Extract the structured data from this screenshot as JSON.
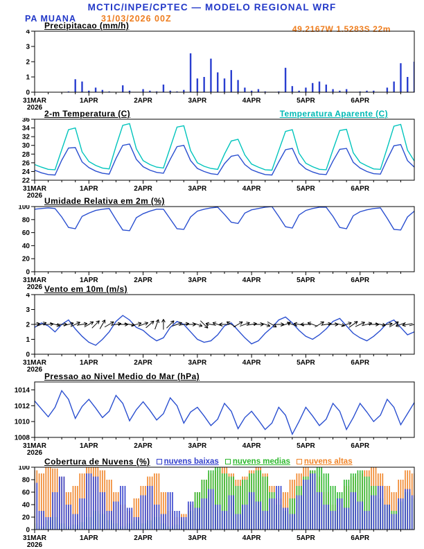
{
  "header": {
    "title": "MCTIC/INPE/CPTEC — MODELO REGIONAL WRF",
    "station": "PA MUANA",
    "run_datetime": "31/03/2026 00Z",
    "coordinates": "49.2167W 1.5283S 22m"
  },
  "colors": {
    "title_blue": "#2238c8",
    "accent_orange": "#ee7d1e",
    "line_blue": "#2a4fd0",
    "apparent_temp_cyan": "#00c4bc",
    "cloud_low_blue": "#3340cc",
    "cloud_mid_green": "#2db82d",
    "cloud_high_orange": "#f08428",
    "axis_black": "#000000"
  },
  "chart_data": {
    "type": "multi-panel-meteogram",
    "x": {
      "start_hours": 0,
      "end_hours": 168,
      "step_hours": 3,
      "ticks": [
        {
          "t": 0,
          "label": "31MAR",
          "sublabel": "2026"
        },
        {
          "t": 24,
          "label": "1APR"
        },
        {
          "t": 48,
          "label": "2APR"
        },
        {
          "t": 72,
          "label": "3APR"
        },
        {
          "t": 96,
          "label": "4APR"
        },
        {
          "t": 120,
          "label": "5APR"
        },
        {
          "t": 144,
          "label": "6APR"
        }
      ]
    },
    "panels": [
      {
        "id": "precip",
        "type": "bar",
        "title": "Precipitacao (mm/h)",
        "ylim": [
          0,
          4
        ],
        "yticks": [
          0,
          1,
          2,
          3,
          4
        ],
        "color": "#2a3fd0",
        "values": [
          0,
          0,
          0,
          0,
          0,
          0.05,
          0.85,
          0.7,
          0.1,
          0.3,
          0.15,
          0.05,
          0,
          0.45,
          0.1,
          0,
          0.2,
          0.1,
          0.05,
          0.5,
          0.1,
          0.05,
          0.15,
          2.55,
          0.9,
          1.0,
          2.2,
          1.3,
          0.9,
          1.45,
          0.8,
          0.3,
          0.1,
          0.2,
          0.05,
          0,
          0.05,
          1.6,
          0.4,
          0.1,
          0.3,
          0.6,
          0.7,
          0.5,
          0.2,
          0.1,
          0.2,
          0,
          0.05,
          0.1,
          0.1,
          0,
          0.3,
          0.7,
          1.9,
          1.0,
          2.0
        ]
      },
      {
        "id": "temp",
        "type": "line",
        "title": "2-m Temperatura (C)",
        "right_label": "Temperatura Aparente (C)",
        "ylim": [
          22,
          36
        ],
        "yticks": [
          22,
          24,
          26,
          28,
          30,
          32,
          34,
          36
        ],
        "series": [
          {
            "name": "2-m Temperatura (C)",
            "color": "#2a4fd0",
            "values": [
              24.3,
              23.7,
              23.3,
              23.2,
              26.6,
              29.4,
              29.5,
              26.2,
              24.9,
              24.1,
              23.6,
              23.4,
              27.0,
              30.0,
              30.3,
              26.8,
              25.1,
              24.3,
              23.8,
              23.6,
              26.8,
              29.7,
              30.0,
              26.5,
              24.7,
              24.0,
              23.5,
              23.3,
              25.8,
              27.5,
              27.8,
              25.6,
              24.4,
              23.8,
              23.3,
              23.2,
              26.2,
              29.0,
              29.3,
              26.0,
              24.6,
              23.9,
              23.4,
              23.3,
              26.4,
              29.1,
              29.3,
              26.1,
              24.8,
              24.0,
              23.5,
              23.4,
              26.8,
              29.9,
              30.2,
              26.5,
              25.0
            ]
          },
          {
            "name": "Temperatura Aparente (C)",
            "color": "#00c4bc",
            "values": [
              25.6,
              25.0,
              24.5,
              24.4,
              29.0,
              33.6,
              34.0,
              28.5,
              26.3,
              25.4,
              24.8,
              24.6,
              29.8,
              34.6,
              35.0,
              29.2,
              26.5,
              25.6,
              25.0,
              24.8,
              29.5,
              34.2,
              34.5,
              28.8,
              26.0,
              25.2,
              24.7,
              24.5,
              28.0,
              31.0,
              31.4,
              27.8,
              25.7,
              25.0,
              24.4,
              24.3,
              28.8,
              33.2,
              33.6,
              28.2,
              25.9,
              25.1,
              24.5,
              24.4,
              29.0,
              33.4,
              33.7,
              28.3,
              26.1,
              25.3,
              24.6,
              24.5,
              29.4,
              34.4,
              34.8,
              28.9,
              26.4
            ]
          }
        ]
      },
      {
        "id": "rh",
        "type": "line",
        "title": "Umidade Relativa em 2m (%)",
        "ylim": [
          0,
          100
        ],
        "yticks": [
          0,
          20,
          40,
          60,
          80,
          100
        ],
        "series": [
          {
            "name": "Umidade Relativa em 2m",
            "color": "#2a4fd0",
            "values": [
              96,
              97,
              98,
              97,
              84,
              68,
              66,
              85,
              90,
              94,
              96,
              97,
              80,
              64,
              63,
              83,
              89,
              93,
              96,
              96,
              81,
              66,
              65,
              84,
              93,
              96,
              98,
              99,
              88,
              76,
              74,
              90,
              95,
              97,
              99,
              100,
              85,
              69,
              67,
              87,
              94,
              97,
              99,
              99,
              85,
              68,
              66,
              86,
              92,
              95,
              97,
              98,
              82,
              65,
              64,
              84,
              93
            ]
          }
        ]
      },
      {
        "id": "wind",
        "type": "wind",
        "title": "Vento em 10m (m/s)",
        "ylim": [
          0,
          4
        ],
        "yticks": [
          0,
          1,
          2,
          3,
          4
        ],
        "series": [
          {
            "name": "Velocidade do vento",
            "color": "#2a4fd0",
            "values": [
              1.8,
              2.1,
              1.9,
              1.5,
              2.0,
              2.3,
              1.7,
              1.2,
              0.8,
              0.6,
              1.0,
              1.5,
              2.2,
              2.6,
              2.3,
              1.8,
              1.6,
              1.2,
              0.9,
              1.1,
              1.8,
              2.2,
              2.0,
              1.5,
              1.0,
              0.8,
              0.9,
              1.3,
              1.9,
              2.1,
              1.6,
              1.1,
              0.7,
              0.9,
              1.4,
              1.8,
              2.3,
              2.5,
              2.1,
              1.6,
              1.2,
              1.0,
              1.3,
              1.7,
              2.2,
              2.4,
              1.9,
              1.4,
              1.1,
              0.9,
              1.2,
              1.6,
              2.1,
              2.3,
              1.8,
              1.3,
              1.5
            ]
          }
        ],
        "arrows": {
          "level": 2,
          "color": "#000000",
          "directions_deg": [
            10,
            20,
            5,
            -15,
            0,
            15,
            25,
            10,
            30,
            45,
            60,
            30,
            10,
            0,
            -10,
            15,
            20,
            40,
            70,
            90,
            45,
            20,
            10,
            0,
            -20,
            -45,
            170,
            160,
            180,
            150,
            30,
            20,
            10,
            0,
            -20,
            -30,
            0,
            20,
            160,
            170,
            180,
            160,
            30,
            10,
            0,
            -15,
            20,
            35,
            25,
            15,
            0,
            -10,
            10,
            30,
            200,
            190,
            15
          ]
        }
      },
      {
        "id": "pres",
        "type": "line",
        "title": "Pressao ao Nivel Medio do Mar (hPa)",
        "ylim": [
          1008,
          1015
        ],
        "yticks": [
          1008,
          1010,
          1012,
          1014
        ],
        "series": [
          {
            "name": "Pressao ao nivel medio do mar",
            "color": "#2a4fd0",
            "values": [
              1012.6,
              1011.6,
              1010.6,
              1011.8,
              1013.9,
              1012.8,
              1010.4,
              1011.9,
              1012.8,
              1011.7,
              1010.5,
              1011.3,
              1013.3,
              1012.3,
              1010.1,
              1011.5,
              1012.5,
              1011.4,
              1010.2,
              1011.0,
              1013.0,
              1012.0,
              1009.8,
              1011.2,
              1011.8,
              1010.7,
              1009.5,
              1010.3,
              1012.3,
              1011.3,
              1009.1,
              1010.5,
              1011.3,
              1010.2,
              1009.0,
              1009.8,
              1011.8,
              1010.8,
              1008.4,
              1010.0,
              1011.8,
              1010.7,
              1009.5,
              1010.3,
              1012.3,
              1011.3,
              1009.0,
              1010.5,
              1012.3,
              1011.2,
              1010.0,
              1010.8,
              1012.8,
              1011.8,
              1009.6,
              1011.0,
              1012.4
            ]
          }
        ]
      },
      {
        "id": "clouds",
        "type": "cloudbars",
        "title": "Cobertura de Nuvens (%)",
        "ylim": [
          0,
          100
        ],
        "yticks": [
          0,
          20,
          40,
          60,
          80,
          100
        ],
        "legend": [
          {
            "label": "nuvens baixas",
            "color": "#3340cc"
          },
          {
            "label": "nuvens medias",
            "color": "#2db82d"
          },
          {
            "label": "nuvens altas",
            "color": "#f08428"
          }
        ],
        "series": [
          {
            "name": "nuvens altas",
            "color": "#f08428",
            "values": [
              95,
              90,
              100,
              98,
              85,
              60,
              70,
              90,
              100,
              100,
              95,
              80,
              60,
              40,
              30,
              50,
              70,
              85,
              90,
              60,
              30,
              20,
              25,
              40,
              60,
              80,
              90,
              95,
              100,
              90,
              80,
              85,
              95,
              100,
              90,
              70,
              50,
              60,
              80,
              90,
              100,
              95,
              85,
              60,
              40,
              50,
              70,
              85,
              90,
              95,
              100,
              90,
              70,
              60,
              80,
              95,
              90
            ]
          },
          {
            "name": "nuvens medias",
            "color": "#2db82d",
            "values": [
              10,
              5,
              15,
              20,
              10,
              5,
              8,
              12,
              20,
              30,
              25,
              15,
              10,
              5,
              10,
              15,
              10,
              15,
              20,
              10,
              5,
              8,
              15,
              30,
              60,
              80,
              95,
              100,
              90,
              85,
              70,
              80,
              90,
              95,
              85,
              60,
              40,
              30,
              50,
              70,
              85,
              95,
              100,
              90,
              70,
              60,
              80,
              90,
              95,
              85,
              70,
              50,
              40,
              30,
              45,
              60,
              50
            ]
          },
          {
            "name": "nuvens baixas",
            "color": "#3340cc",
            "values": [
              75,
              30,
              20,
              60,
              85,
              40,
              25,
              50,
              90,
              85,
              60,
              30,
              45,
              70,
              35,
              20,
              55,
              70,
              40,
              25,
              60,
              30,
              20,
              45,
              35,
              50,
              65,
              40,
              30,
              55,
              25,
              40,
              60,
              45,
              30,
              50,
              70,
              35,
              25,
              55,
              80,
              90,
              60,
              40,
              30,
              50,
              35,
              60,
              45,
              30,
              55,
              70,
              40,
              25,
              50,
              65,
              55
            ]
          }
        ]
      }
    ]
  }
}
